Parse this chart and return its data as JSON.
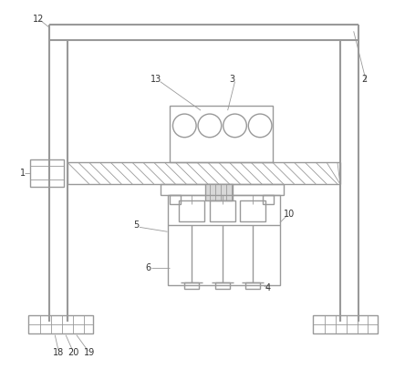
{
  "bg_color": "#ffffff",
  "lc": "#999999",
  "lw": 1.0,
  "lw2": 1.5,
  "lw_thin": 0.6,
  "label_fs": 7,
  "label_color": "#333333"
}
